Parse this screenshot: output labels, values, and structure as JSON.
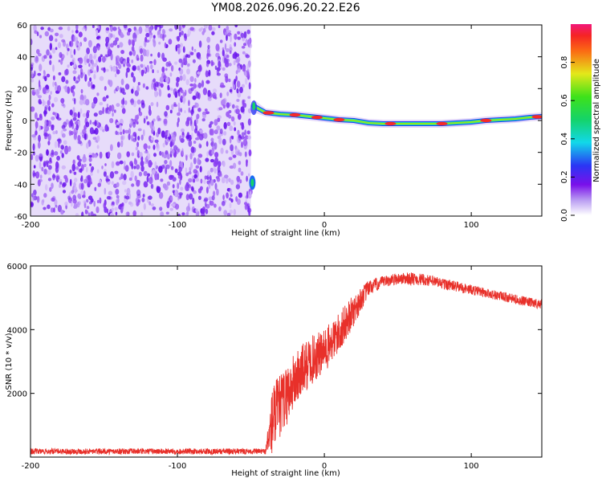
{
  "title": "YM08.2026.096.20.22.E26",
  "colors": {
    "snr_line": "#e8302a",
    "axis": "#000000"
  },
  "chart_data": [
    {
      "type": "heatmap",
      "name": "spectrogram",
      "xlabel": "Height of straight line (km)",
      "ylabel": "Frequency (Hz)",
      "xlim": [
        -200,
        148
      ],
      "ylim": [
        -60,
        60
      ],
      "xticks": [
        "-200",
        "-100",
        "0",
        "100"
      ],
      "xtick_values": [
        -200,
        -100,
        0,
        100
      ],
      "yticks": [
        "60",
        "40",
        "20",
        "0",
        "-20",
        "-40",
        "-60"
      ],
      "ytick_values": [
        60,
        40,
        20,
        0,
        -20,
        -40,
        -60
      ],
      "noise_region_x": [
        -200,
        -50
      ],
      "signal_track": {
        "x": [
          -48,
          -40,
          -30,
          -20,
          -10,
          0,
          10,
          20,
          30,
          40,
          50,
          60,
          70,
          80,
          90,
          100,
          110,
          120,
          130,
          140,
          148
        ],
        "frequency": [
          9,
          5,
          4,
          3.5,
          2.5,
          1.5,
          0.5,
          0,
          -1.5,
          -2,
          -2,
          -2,
          -2,
          -2,
          -1.5,
          -1,
          0,
          0.5,
          1,
          2,
          2.5
        ]
      },
      "blip": {
        "x": -49,
        "frequency": -39
      },
      "colorbar": {
        "label": "Normalized spectral amplitude",
        "ticks": [
          "0.0",
          "0.2",
          "0.4",
          "0.6",
          "0.8"
        ],
        "tick_values": [
          0.0,
          0.2,
          0.4,
          0.6,
          0.8
        ],
        "range": [
          0,
          1
        ]
      }
    },
    {
      "type": "line",
      "name": "snr",
      "xlabel": "Height of straight line (km)",
      "ylabel": "SNR (10 * v/v)",
      "xlim": [
        -200,
        148
      ],
      "ylim": [
        0,
        6000
      ],
      "xticks": [
        "-200",
        "-100",
        "0",
        "100"
      ],
      "xtick_values": [
        -200,
        -100,
        0,
        100
      ],
      "yticks": [
        "6000",
        "4000",
        "2000"
      ],
      "ytick_values": [
        6000,
        4000,
        2000
      ],
      "envelope": {
        "x": [
          -200,
          -40,
          -35,
          -30,
          -20,
          -10,
          0,
          10,
          20,
          30,
          40,
          50,
          60,
          70,
          80,
          90,
          100,
          110,
          120,
          130,
          140,
          148
        ],
        "mean": [
          180,
          180,
          1200,
          1600,
          2400,
          3000,
          3300,
          3900,
          4600,
          5300,
          5500,
          5600,
          5600,
          5550,
          5450,
          5350,
          5250,
          5150,
          5050,
          4950,
          4850,
          4800
        ],
        "spread": [
          90,
          90,
          1200,
          1000,
          900,
          800,
          700,
          650,
          500,
          250,
          180,
          180,
          200,
          180,
          180,
          170,
          160,
          150,
          150,
          150,
          150,
          150
        ]
      }
    }
  ]
}
